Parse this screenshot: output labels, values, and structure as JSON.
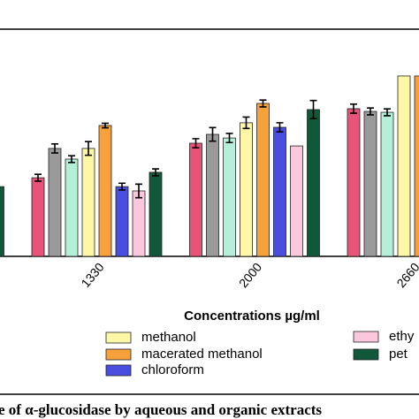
{
  "chart_data": {
    "type": "bar",
    "x_label": "Concentrations µg/ml",
    "caption": "e of α-glucosidase by aqueous and organic extracts",
    "categories": [
      null,
      "1330",
      "2000",
      "2660"
    ],
    "ylim": [
      0,
      100
    ],
    "series": [
      {
        "color": "#e8537a",
        "values": [
          null,
          34.6,
          49.8,
          65.0
        ],
        "errors": [
          null,
          1.5,
          2,
          2
        ]
      },
      {
        "color": "#9a9a9a",
        "values": [
          null,
          47.5,
          53.7,
          63.8
        ],
        "errors": [
          null,
          2,
          3,
          1.5
        ]
      },
      {
        "color": "#b4f0d8",
        "values": [
          null,
          42.8,
          52.1,
          63.4
        ],
        "errors": [
          null,
          1.5,
          2,
          1.5
        ]
      },
      {
        "name": "methanol",
        "color": "#fff7a8",
        "values": [
          null,
          47.5,
          58.8,
          79.4
        ],
        "errors": [
          null,
          3,
          2.5,
          null
        ]
      },
      {
        "name": "macerated methanol",
        "color": "#f7a13c",
        "values": [
          null,
          57.6,
          67.3,
          79.4
        ],
        "errors": [
          null,
          1,
          1.5,
          null
        ]
      },
      {
        "name": "chloroform",
        "color": "#4a4ee0",
        "values": [
          null,
          30.7,
          56.8,
          null
        ],
        "errors": [
          null,
          1.5,
          2,
          null
        ]
      },
      {
        "name": "ethy",
        "color": "#fbc7dc",
        "values": [
          null,
          28.8,
          48.6,
          null
        ],
        "errors": [
          null,
          3,
          null,
          null
        ]
      },
      {
        "name": "pet",
        "color": "#11573a",
        "values": [
          30.7,
          37.0,
          64.6,
          null
        ],
        "errors": [
          null,
          1.5,
          4,
          null
        ]
      }
    ]
  }
}
